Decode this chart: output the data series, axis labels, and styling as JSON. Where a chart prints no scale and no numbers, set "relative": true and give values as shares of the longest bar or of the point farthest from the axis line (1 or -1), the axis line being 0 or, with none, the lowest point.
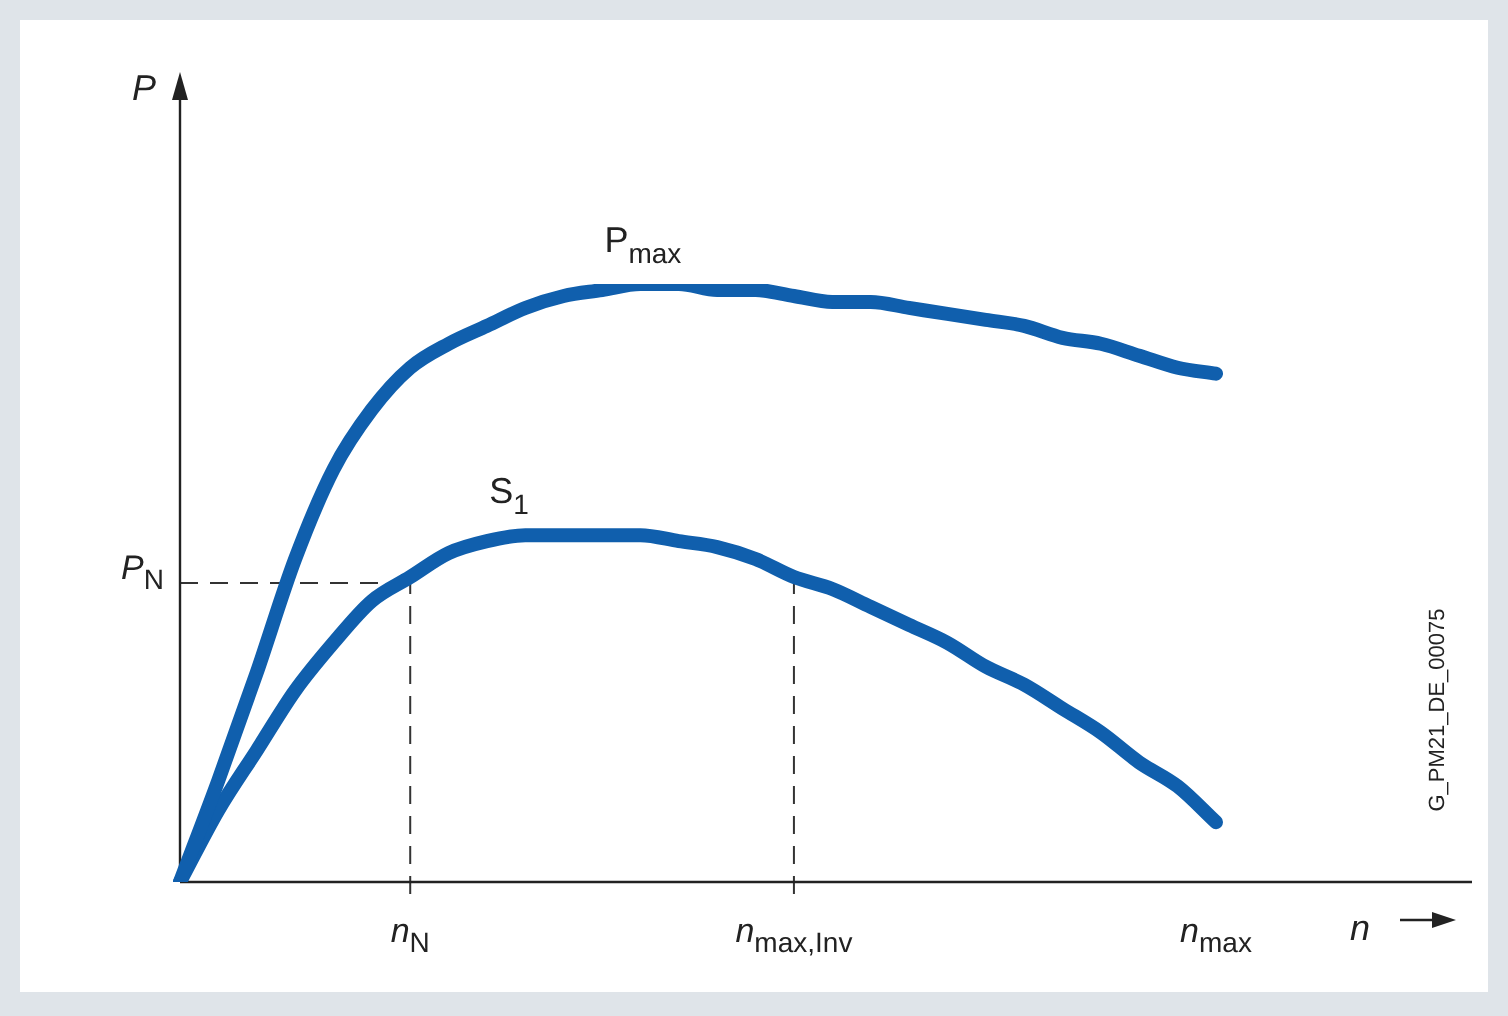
{
  "chart_data": {
    "type": "line",
    "relative": true,
    "xlabel": "n",
    "ylabel": "P",
    "legend": false,
    "marker": "none",
    "line_style": "solid",
    "categories": [
      null,
      null,
      null,
      null,
      null,
      null,
      "n$_{N}$",
      null,
      null,
      null,
      null,
      null,
      null,
      null,
      null,
      null,
      "n$_{max,Inv}$",
      null,
      null,
      null,
      null,
      null,
      null,
      null,
      null,
      null,
      null,
      "n$_{max}$"
    ],
    "series": [
      {
        "name": "P$_{max}$",
        "color": "#105fad",
        "values": [
          0,
          0.17,
          0.35,
          0.54,
          0.69,
          0.79,
          0.86,
          0.9,
          0.93,
          0.96,
          0.98,
          0.99,
          1,
          1,
          0.99,
          0.99,
          0.98,
          0.97,
          0.97,
          0.96,
          0.95,
          0.94,
          0.93,
          0.91,
          0.9,
          0.88,
          0.86,
          0.85
        ]
      },
      {
        "name": "S$_{1}$",
        "color": "#105fad",
        "values": [
          0,
          0.12,
          0.22,
          0.32,
          0.4,
          0.47,
          0.51,
          0.55,
          0.57,
          0.58,
          0.58,
          0.58,
          0.58,
          0.57,
          0.56,
          0.54,
          0.51,
          0.49,
          0.46,
          0.43,
          0.4,
          0.36,
          0.33,
          0.29,
          0.25,
          0.2,
          0.16,
          0.1
        ]
      }
    ],
    "ref_lines": [
      {
        "axis": "y",
        "value": 0.5,
        "label": "P$_{N}$",
        "line_style": "dashed",
        "color": "#333333"
      },
      {
        "axis": "x",
        "value": "n$_{N}$",
        "line_style": "dashed",
        "color": "#333333"
      },
      {
        "axis": "x",
        "value": "n$_{max,Inv}$",
        "line_style": "dashed",
        "color": "#333333"
      }
    ],
    "annotations": [
      "G_PM21_DE_00075"
    ]
  }
}
